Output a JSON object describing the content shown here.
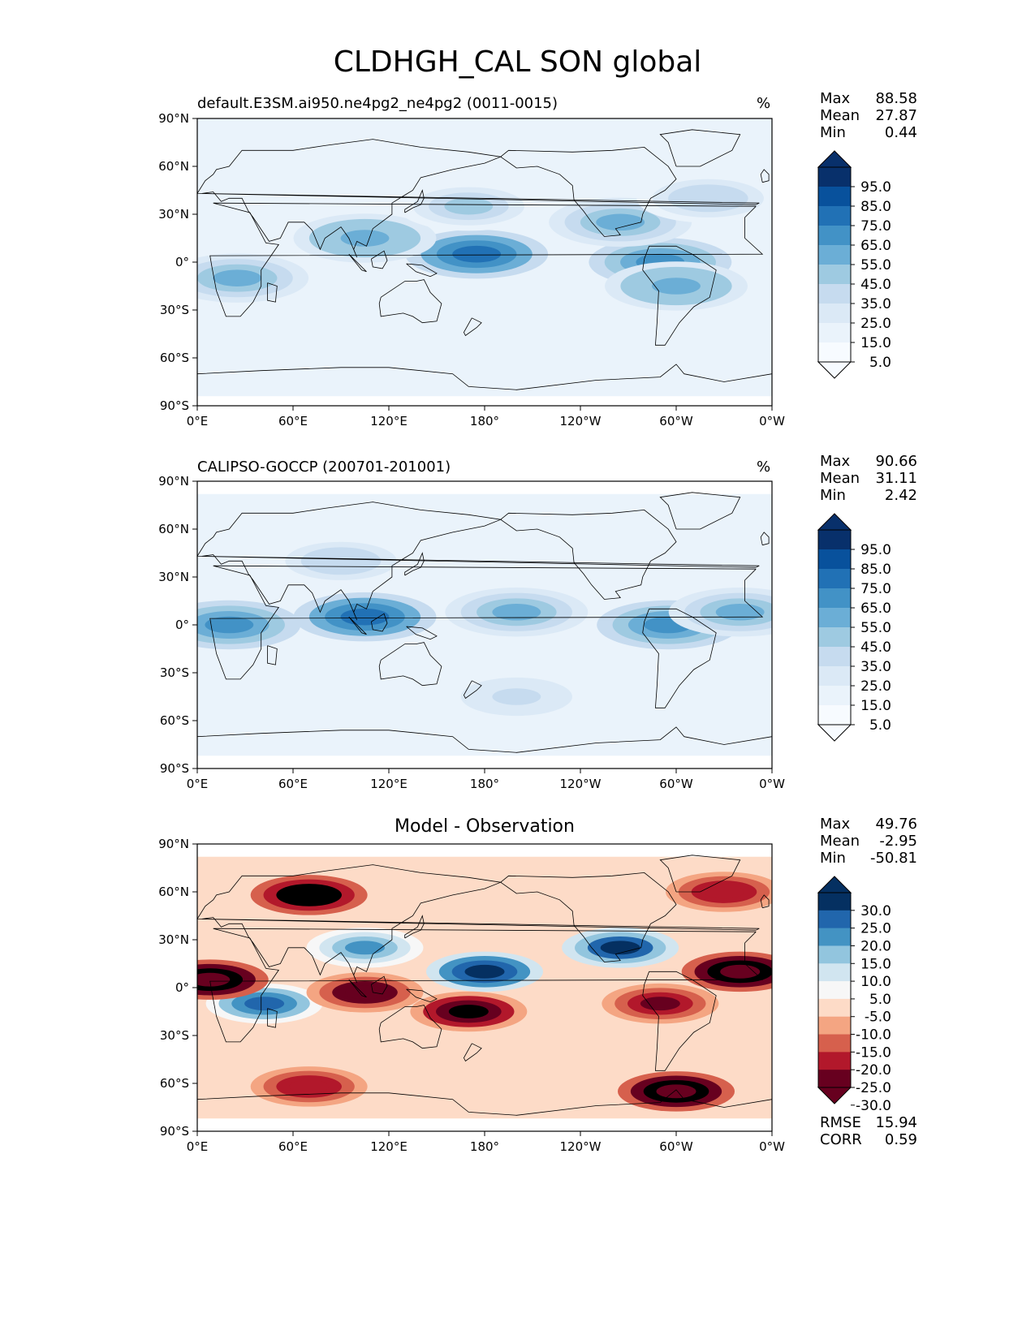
{
  "figure": {
    "title": "CLDHGH_CAL SON global"
  },
  "panels": [
    {
      "title": "default.E3SM.ai950.ne4pg2_ne4pg2 (0011-0015)",
      "units": "%",
      "stats": {
        "max_label": "Max",
        "max": "88.58",
        "mean_label": "Mean",
        "mean": "27.87",
        "min_label": "Min",
        "min": "0.44"
      }
    },
    {
      "title": "CALIPSO-GOCCP (200701-201001)",
      "units": "%",
      "stats": {
        "max_label": "Max",
        "max": "90.66",
        "mean_label": "Mean",
        "mean": "31.11",
        "min_label": "Min",
        "min": "2.42"
      }
    },
    {
      "title": "Model - Observation",
      "units": "",
      "stats": {
        "max_label": "Max",
        "max": "49.76",
        "mean_label": "Mean",
        "mean": "-2.95",
        "min_label": "Min",
        "min": "-50.81"
      },
      "rmse_label": "RMSE",
      "rmse": "15.94",
      "corr_label": "CORR",
      "corr": "0.59"
    }
  ],
  "axes": {
    "x_ticks": [
      "0°E",
      "60°E",
      "120°E",
      "180°",
      "120°W",
      "60°W",
      "0°W"
    ],
    "y_ticks": [
      "90°N",
      "60°N",
      "30°N",
      "0°",
      "30°S",
      "60°S",
      "90°S"
    ]
  },
  "colorbars": {
    "abs_levels": [
      "95.0",
      "85.0",
      "75.0",
      "65.0",
      "55.0",
      "45.0",
      "35.0",
      "25.0",
      "15.0",
      "5.0"
    ],
    "diff_levels": [
      "30.0",
      "25.0",
      "20.0",
      "15.0",
      "10.0",
      "5.0",
      "-5.0",
      "-10.0",
      "-15.0",
      "-20.0",
      "-25.0",
      "-30.0"
    ],
    "abs_colors": [
      "#08306b",
      "#08519c",
      "#2171b5",
      "#4292c6",
      "#6baed6",
      "#9ecae1",
      "#c6dbef",
      "#dbe9f6",
      "#eaf3fb",
      "#f7fbff"
    ],
    "diff_colors": [
      "#053061",
      "#2166ac",
      "#4393c3",
      "#92c5de",
      "#d1e5f0",
      "#f7f7f7",
      "#fddbc7",
      "#f4a582",
      "#d6604d",
      "#b2182b",
      "#67001f"
    ]
  },
  "chart_data": [
    {
      "type": "heatmap",
      "title": "default.E3SM.ai950.ne4pg2_ne4pg2 (0011-0015)",
      "units": "%",
      "xlim": [
        0,
        360
      ],
      "ylim": [
        -90,
        90
      ],
      "levels": [
        5,
        15,
        25,
        35,
        45,
        55,
        65,
        75,
        85,
        95
      ],
      "blobs": [
        {
          "lon": 175,
          "lat": 5,
          "value": 75
        },
        {
          "lon": 105,
          "lat": 15,
          "value": 60
        },
        {
          "lon": 290,
          "lat": 0,
          "value": 70
        },
        {
          "lon": 265,
          "lat": 25,
          "value": 55
        },
        {
          "lon": 25,
          "lat": -10,
          "value": 55
        },
        {
          "lon": 300,
          "lat": -15,
          "value": 60
        },
        {
          "lon": 170,
          "lat": 35,
          "value": 45
        },
        {
          "lon": 320,
          "lat": 40,
          "value": 40
        }
      ]
    },
    {
      "type": "heatmap",
      "title": "CALIPSO-GOCCP (200701-201001)",
      "units": "%",
      "xlim": [
        0,
        360
      ],
      "ylim": [
        -90,
        90
      ],
      "levels": [
        5,
        15,
        25,
        35,
        45,
        55,
        65,
        75,
        85,
        95
      ],
      "blobs": [
        {
          "lon": 105,
          "lat": 5,
          "value": 75
        },
        {
          "lon": 20,
          "lat": 0,
          "value": 65
        },
        {
          "lon": 295,
          "lat": 0,
          "value": 70
        },
        {
          "lon": 200,
          "lat": 8,
          "value": 55
        },
        {
          "lon": 340,
          "lat": 8,
          "value": 55
        },
        {
          "lon": 90,
          "lat": 40,
          "value": 40
        },
        {
          "lon": 200,
          "lat": -45,
          "value": 35
        }
      ]
    },
    {
      "type": "heatmap",
      "title": "Model - Observation",
      "xlim": [
        0,
        360
      ],
      "ylim": [
        -90,
        90
      ],
      "levels": [
        -30,
        -25,
        -20,
        -15,
        -10,
        -5,
        5,
        10,
        15,
        20,
        25,
        30
      ],
      "blobs": [
        {
          "lon": 180,
          "lat": 10,
          "value": 35
        },
        {
          "lon": 265,
          "lat": 25,
          "value": 30
        },
        {
          "lon": 42,
          "lat": -10,
          "value": 28
        },
        {
          "lon": 105,
          "lat": 25,
          "value": 20
        },
        {
          "lon": 8,
          "lat": 5,
          "value": -35
        },
        {
          "lon": 340,
          "lat": 10,
          "value": -35
        },
        {
          "lon": 70,
          "lat": 58,
          "value": -30
        },
        {
          "lon": 300,
          "lat": -65,
          "value": -35
        },
        {
          "lon": 70,
          "lat": -62,
          "value": -20
        },
        {
          "lon": 170,
          "lat": -15,
          "value": -28
        },
        {
          "lon": 105,
          "lat": -3,
          "value": -25
        },
        {
          "lon": 290,
          "lat": -10,
          "value": -22
        },
        {
          "lon": 330,
          "lat": 60,
          "value": -20
        }
      ]
    }
  ]
}
